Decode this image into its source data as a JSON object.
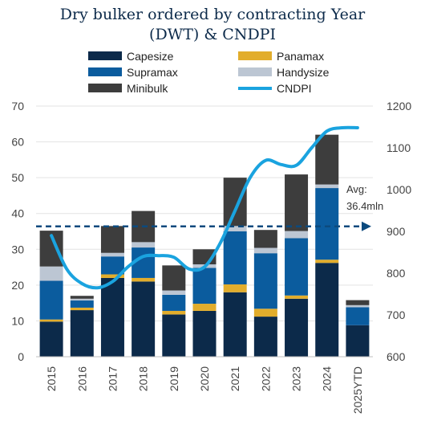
{
  "chart_data": {
    "type": "bar",
    "title_line1": "Dry bulker ordered by contracting Year",
    "title_line2": "(DWT) & CNDPI",
    "categories": [
      "2015",
      "2016",
      "2017",
      "2018",
      "2019",
      "2020",
      "2021",
      "2022",
      "2023",
      "2024",
      "2025YTD"
    ],
    "stacked": true,
    "ylim": [
      0,
      70
    ],
    "y_ticks": [
      0,
      10,
      20,
      30,
      40,
      50,
      60,
      70
    ],
    "y2lim": [
      600,
      1200
    ],
    "y2_ticks": [
      600,
      700,
      800,
      900,
      1000,
      1100,
      1200
    ],
    "series": [
      {
        "name": "Capesize",
        "color": "#0c2a4a",
        "values": [
          9.8,
          13.0,
          22.0,
          21.0,
          11.8,
          12.8,
          18.0,
          11.2,
          16.2,
          26.2,
          8.8
        ]
      },
      {
        "name": "Panamax",
        "color": "#e2ad2c",
        "values": [
          0.6,
          0.7,
          1.0,
          1.0,
          1.0,
          2.0,
          2.2,
          2.2,
          0.9,
          0.9,
          0.0
        ]
      },
      {
        "name": "Supramax",
        "color": "#0b5c9e",
        "values": [
          10.8,
          2.0,
          5.0,
          8.5,
          4.5,
          10.0,
          14.8,
          15.5,
          16.0,
          20.0,
          5.0
        ]
      },
      {
        "name": "Handysize",
        "color": "#bcc6d3",
        "values": [
          4.0,
          0.5,
          1.0,
          1.5,
          1.2,
          1.0,
          1.5,
          1.5,
          2.0,
          1.0,
          0.6
        ]
      },
      {
        "name": "Minibulk",
        "color": "#3d3d3d",
        "values": [
          10.0,
          0.8,
          7.5,
          8.7,
          7.0,
          4.2,
          13.5,
          5.0,
          15.8,
          13.9,
          1.4
        ]
      }
    ],
    "line": {
      "name": "CNDPI",
      "axis": "right",
      "color": "#1aa3df",
      "x": [
        0,
        0.5,
        1,
        1.5,
        2,
        2.5,
        3,
        3.5,
        4,
        4.5,
        5,
        5.5,
        6,
        6.5,
        7,
        7.5,
        8,
        8.5,
        9,
        9.5,
        10
      ],
      "values": [
        890,
        810,
        775,
        765,
        780,
        815,
        840,
        842,
        838,
        810,
        815,
        870,
        950,
        1030,
        1070,
        1060,
        1058,
        1100,
        1140,
        1148,
        1148
      ]
    },
    "average": {
      "value": 36.4,
      "label_line1": "Avg:",
      "label_line2": "36.4mln",
      "color": "#0c4a7e"
    },
    "legend_position": "top"
  }
}
